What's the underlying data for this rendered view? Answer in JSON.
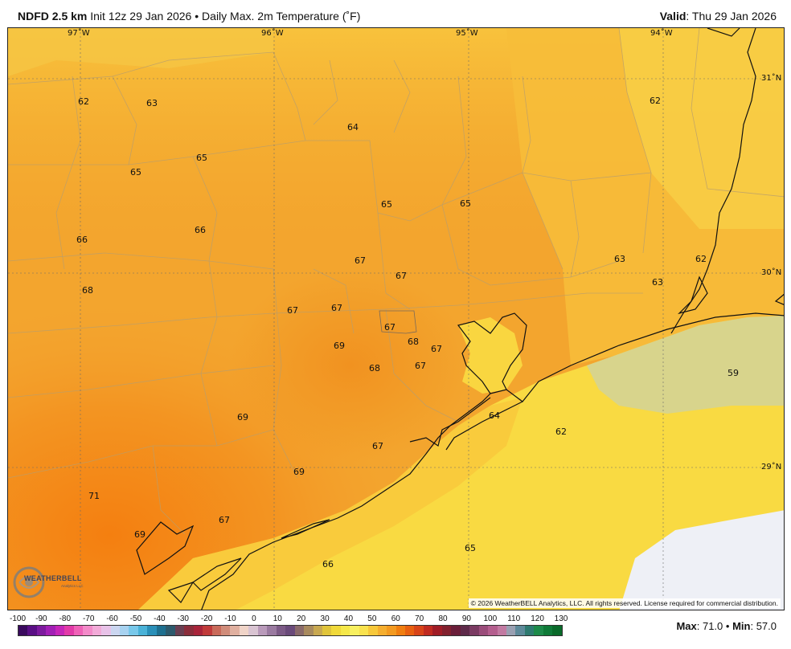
{
  "header": {
    "model": "NDFD 2.5 km",
    "init": "Init 12z 29 Jan 2026",
    "bullet": "•",
    "product": "Daily Max. 2m Temperature (˚F)",
    "valid_label": "Valid",
    "valid_date": ": Thu 29 Jan 2026"
  },
  "grid_labels": {
    "lon": [
      "97˚W",
      "96˚W",
      "95˚W",
      "94˚W"
    ],
    "lat": [
      "31˚N",
      "30˚N",
      "29˚N"
    ]
  },
  "values": [
    {
      "label": "62",
      "place": "northwest"
    },
    {
      "label": "63",
      "place": "north"
    },
    {
      "label": "64",
      "place": "north-central"
    },
    {
      "label": "62",
      "place": "northeast"
    },
    {
      "label": "65",
      "place": "west"
    },
    {
      "label": "65",
      "place": "west-central"
    },
    {
      "label": "65",
      "place": "central"
    },
    {
      "label": "65",
      "place": "central-east"
    },
    {
      "label": "66",
      "place": "west"
    },
    {
      "label": "66",
      "place": "west-central"
    },
    {
      "label": "67",
      "place": "central"
    },
    {
      "label": "67",
      "place": "central"
    },
    {
      "label": "63",
      "place": "east"
    },
    {
      "label": "62",
      "place": "east"
    },
    {
      "label": "63",
      "place": "east"
    },
    {
      "label": "68",
      "place": "west"
    },
    {
      "label": "67",
      "place": "central"
    },
    {
      "label": "67",
      "place": "central"
    },
    {
      "label": "67",
      "place": "Houston"
    },
    {
      "label": "68",
      "place": "Houston"
    },
    {
      "label": "67",
      "place": "Houston"
    },
    {
      "label": "69",
      "place": "south-central"
    },
    {
      "label": "68",
      "place": "south-central"
    },
    {
      "label": "67",
      "place": "south-central"
    },
    {
      "label": "59",
      "place": "offshore east"
    },
    {
      "label": "69",
      "place": "southwest"
    },
    {
      "label": "64",
      "place": "Galveston"
    },
    {
      "label": "62",
      "place": "offshore"
    },
    {
      "label": "67",
      "place": "coast"
    },
    {
      "label": "69",
      "place": "coast"
    },
    {
      "label": "71",
      "place": "far southwest"
    },
    {
      "label": "67",
      "place": "coast"
    },
    {
      "label": "69",
      "place": "coast"
    },
    {
      "label": "65",
      "place": "offshore"
    },
    {
      "label": "66",
      "place": "offshore"
    }
  ],
  "footer": {
    "copyright": "© 2026 WeatherBELL Analytics, LLC. All rights reserved. License required for commercial distribution.",
    "logo": "WEATHERBELL",
    "logo_sub": "Analytics LLC",
    "max_label": "Max",
    "max_value": ": 71.0",
    "min_label": "Min",
    "min_value": ": 57.0",
    "bullet": "•"
  },
  "colorbar": {
    "ticks": [
      "-100",
      "-90",
      "-80",
      "-70",
      "-60",
      "-50",
      "-40",
      "-30",
      "-20",
      "-10",
      "0",
      "10",
      "20",
      "30",
      "40",
      "50",
      "60",
      "70",
      "80",
      "90",
      "100",
      "110",
      "120",
      "130"
    ],
    "colors": [
      "#3a0a5e",
      "#5a0f85",
      "#7d1a9e",
      "#a21fb5",
      "#c626b8",
      "#e23aa8",
      "#ef62b7",
      "#f38ac9",
      "#f2aad8",
      "#e8c2e8",
      "#cbd6f0",
      "#a7d2f0",
      "#78c8ea",
      "#4ab2d8",
      "#2a8fb8",
      "#1e6f8f",
      "#2d5a6d",
      "#6a3f52",
      "#8b2d3b",
      "#a8243a",
      "#c03a3a",
      "#c96a5a",
      "#d08c7a",
      "#e0b0a0",
      "#f0d4c8",
      "#d9c4d2",
      "#b99aba",
      "#9a7aa0",
      "#7c5a86",
      "#6a4a7a",
      "#8a6a6a",
      "#a88a5e",
      "#c8a850",
      "#e0c43a",
      "#f0d93a",
      "#f5e84a",
      "#f8f060",
      "#f9e24e",
      "#f7c83a",
      "#f5ae2e",
      "#f39a20",
      "#f07e10",
      "#e86010",
      "#d84418",
      "#c02a20",
      "#a01c26",
      "#82202e",
      "#6a1e3a",
      "#5e2a4a",
      "#7a3a62",
      "#9a4c7a",
      "#b45e8e",
      "#c27aa2",
      "#9aa0b2",
      "#5e8a9a",
      "#2e7a70",
      "#1d8a4a",
      "#0f7a38",
      "#0a6a2a"
    ]
  },
  "colors": {
    "land_base": "#f39f2a",
    "warm_core": "#f58c1a",
    "cool_north": "#f7c038",
    "water_warm": "#f9d640",
    "water_cool": "#d7d68e",
    "water_cold": "#eef0f6",
    "coast": "#111111",
    "county": "#b8a06a",
    "grid": "#6a6a6a"
  }
}
